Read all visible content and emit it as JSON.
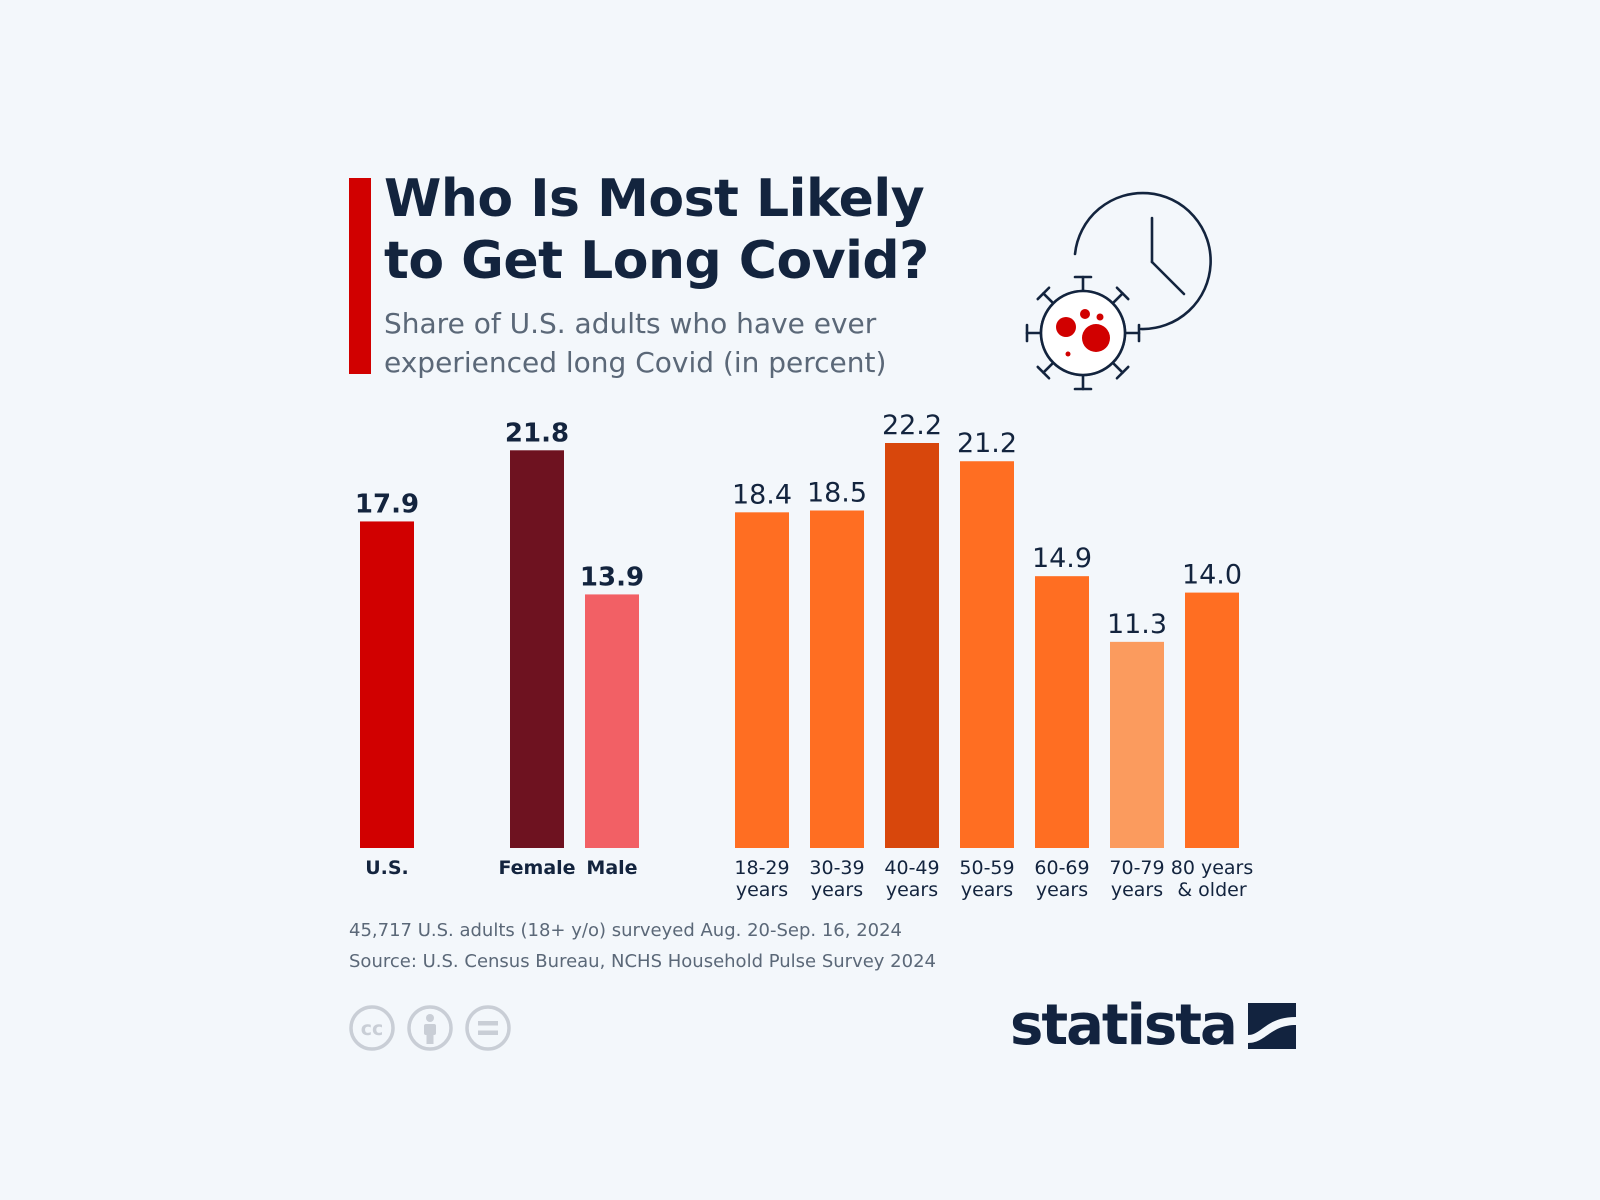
{
  "header": {
    "title_line1": "Who Is Most Likely",
    "title_line2": "to Get Long Covid?",
    "subtitle_line1": "Share of U.S. adults who have ever",
    "subtitle_line2": "experienced long Covid (in percent)"
  },
  "chart_data": {
    "type": "bar",
    "title": "Who Is Most Likely to Get Long Covid?",
    "subtitle": "Share of U.S. adults who have ever experienced long Covid (in percent)",
    "ylim": [
      0,
      22.2
    ],
    "grid": false,
    "groups": [
      {
        "bold": true,
        "bars": [
          {
            "label": [
              "U.S."
            ],
            "value": 17.9,
            "display": "17.9",
            "color": "#d10000"
          }
        ]
      },
      {
        "bold": true,
        "bars": [
          {
            "label": [
              "Female"
            ],
            "value": 21.8,
            "display": "21.8",
            "color": "#6e1220"
          },
          {
            "label": [
              "Male"
            ],
            "value": 13.9,
            "display": "13.9",
            "color": "#f26065"
          }
        ]
      },
      {
        "bold": false,
        "bars": [
          {
            "label": [
              "18-29",
              "years"
            ],
            "value": 18.4,
            "display": "18.4",
            "color": "#ff6e22"
          },
          {
            "label": [
              "30-39",
              "years"
            ],
            "value": 18.5,
            "display": "18.5",
            "color": "#ff6e22"
          },
          {
            "label": [
              "40-49",
              "years"
            ],
            "value": 22.2,
            "display": "22.2",
            "color": "#d8470c"
          },
          {
            "label": [
              "50-59",
              "years"
            ],
            "value": 21.2,
            "display": "21.2",
            "color": "#ff6e22"
          },
          {
            "label": [
              "60-69",
              "years"
            ],
            "value": 14.9,
            "display": "14.9",
            "color": "#ff6e22"
          },
          {
            "label": [
              "70-79",
              "years"
            ],
            "value": 11.3,
            "display": "11.3",
            "color": "#fb9b5e"
          },
          {
            "label": [
              "80 years",
              "& older"
            ],
            "value": 14.0,
            "display": "14.0",
            "color": "#ff6e22"
          }
        ]
      }
    ]
  },
  "footer": {
    "note": "45,717 U.S. adults (18+ y/o) surveyed Aug. 20-Sep. 16, 2024",
    "source": "Source: U.S. Census Bureau, NCHS Household Pulse Survey 2024",
    "license_icons": [
      "cc-icon",
      "attribution-icon",
      "no-derivatives-icon"
    ],
    "brand": "statista"
  },
  "colors": {
    "background": "#f3f7fb",
    "accent": "#d10000",
    "text_dark": "#13243e",
    "text_muted": "#5b6878"
  },
  "icons": {
    "hero": [
      "coronavirus-icon",
      "clock-icon"
    ]
  }
}
